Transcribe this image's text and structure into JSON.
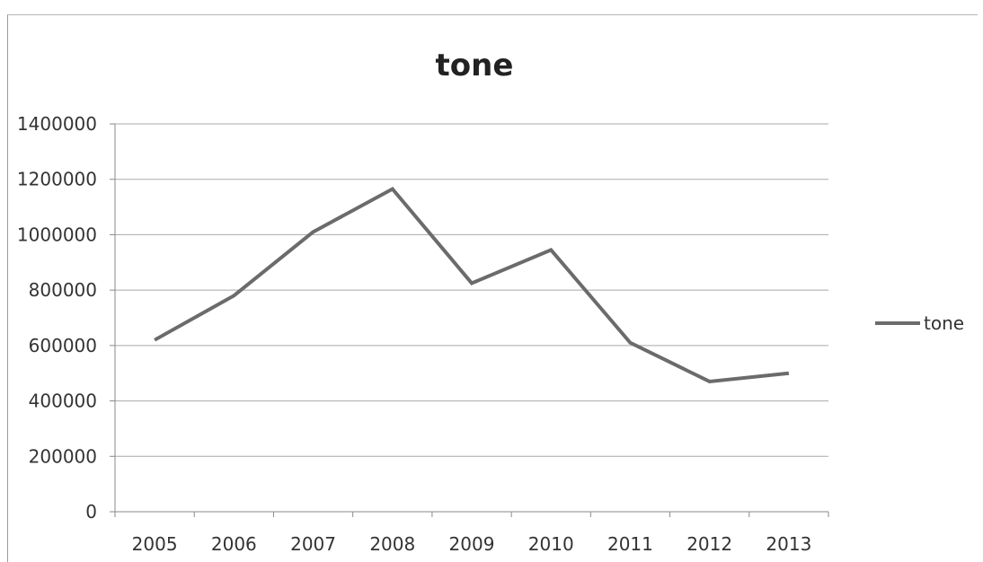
{
  "chart_data": {
    "type": "line",
    "title": "tone",
    "xlabel": "",
    "ylabel": "",
    "categories": [
      "2005",
      "2006",
      "2007",
      "2008",
      "2009",
      "2010",
      "2011",
      "2012",
      "2013"
    ],
    "series": [
      {
        "name": "tone",
        "values": [
          620000,
          780000,
          1010000,
          1165000,
          825000,
          945000,
          610000,
          470000,
          500000
        ]
      }
    ],
    "ylim": [
      0,
      1400000
    ],
    "yticks": [
      "0",
      "200000",
      "400000",
      "600000",
      "800000",
      "1000000",
      "1200000",
      "1400000"
    ],
    "grid": "horizontal",
    "legend": "right",
    "line_color": "#6b6b6b"
  }
}
